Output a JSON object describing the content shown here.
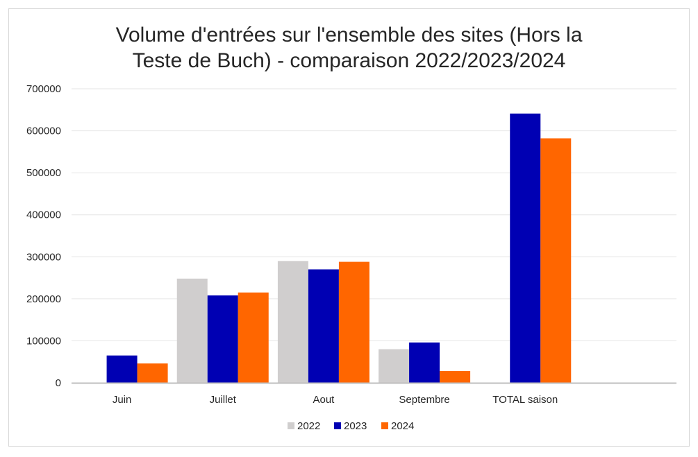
{
  "chart_data": {
    "type": "bar",
    "title_lines": [
      "Volume d'entrées sur l'ensemble des sites (Hors la",
      "Teste de Buch) - comparaison 2022/2023/2024"
    ],
    "categories": [
      "Juin",
      "Juillet",
      "Aout",
      "Septembre",
      "TOTAL saison"
    ],
    "series": [
      {
        "name": "2022",
        "color": "#d0cece",
        "values": [
          null,
          248000,
          290000,
          80000,
          null
        ]
      },
      {
        "name": "2023",
        "color": "#0000b3",
        "values": [
          65000,
          208000,
          270000,
          96000,
          641000
        ]
      },
      {
        "name": "2024",
        "color": "#ff6600",
        "values": [
          46000,
          215000,
          288000,
          28000,
          582000
        ]
      }
    ],
    "ylim": [
      0,
      700000
    ],
    "yticks": [
      "0",
      "100000",
      "200000",
      "300000",
      "400000",
      "500000",
      "600000",
      "700000"
    ],
    "grid": true,
    "legend_position": "bottom"
  }
}
